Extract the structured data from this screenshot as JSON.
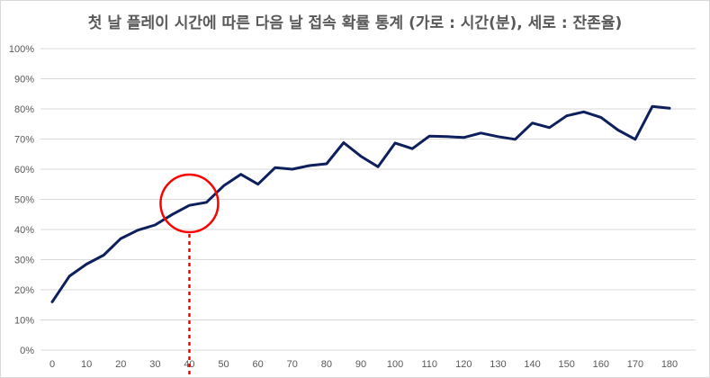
{
  "chart_data": {
    "type": "line",
    "title": "첫 날 플레이 시간에 따른 다음 날 접속 확률 통계 (가로 : 시간(분), 세로 : 잔존율)",
    "xlabel": "",
    "ylabel": "",
    "x": [
      0,
      5,
      10,
      15,
      20,
      25,
      30,
      35,
      40,
      45,
      50,
      55,
      60,
      65,
      70,
      75,
      80,
      85,
      90,
      95,
      100,
      105,
      110,
      115,
      120,
      125,
      130,
      135,
      140,
      145,
      150,
      155,
      160,
      165,
      170,
      175,
      180
    ],
    "x_ticks": [
      "0",
      "10",
      "20",
      "30",
      "40",
      "50",
      "60",
      "70",
      "80",
      "90",
      "100",
      "110",
      "120",
      "130",
      "140",
      "150",
      "160",
      "170",
      "180"
    ],
    "y_ticks": [
      "0%",
      "10%",
      "20%",
      "30%",
      "40%",
      "50%",
      "60%",
      "70%",
      "80%",
      "90%",
      "100%"
    ],
    "series": [
      {
        "values": [
          16,
          24.5,
          28.5,
          31.5,
          37,
          39.8,
          41.5,
          45,
          48,
          49,
          54.5,
          58.3,
          55,
          60.5,
          60,
          61.2,
          61.8,
          68.8,
          64.3,
          60.8,
          68.7,
          66.8,
          71,
          70.8,
          70.5,
          72,
          70.8,
          69.9,
          75.3,
          73.8,
          77.7,
          79,
          77.2,
          73,
          69.9,
          80.8,
          80.2
        ]
      }
    ],
    "ylim": [
      0,
      100
    ],
    "xlim": [
      0,
      180
    ],
    "grid": "horizontal",
    "legend": "none",
    "line_color": "#0d1f5c",
    "annotation": {
      "type": "circle-highlight",
      "at_x": 40,
      "color": "#ff0000"
    }
  }
}
